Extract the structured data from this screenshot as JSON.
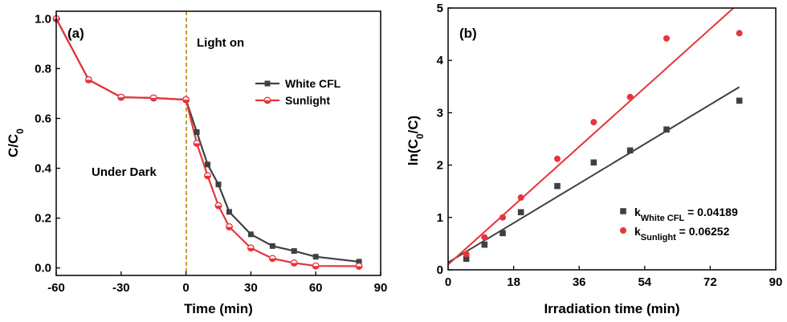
{
  "colors": {
    "white_cfl": "#404040",
    "sunlight": "#e8343c",
    "dark_line": "#b8860b"
  },
  "chart_data": [
    {
      "type": "line",
      "panel_label": "(a)",
      "xlabel": "Time (min)",
      "ylabel_main": "C/C",
      "ylabel_sub": "0",
      "xlim": [
        -60,
        90
      ],
      "ylim": [
        -0.03,
        1.03
      ],
      "xticks": [
        -60,
        -30,
        0,
        30,
        60,
        90
      ],
      "yticks": [
        0.0,
        0.2,
        0.4,
        0.6,
        0.8,
        1.0
      ],
      "xtick_labels": [
        "-60",
        "-30",
        "0",
        "30",
        "60",
        "90"
      ],
      "ytick_labels": [
        "0.0",
        "0.2",
        "0.4",
        "0.6",
        "0.8",
        "1.0"
      ],
      "annotations": {
        "light_on": "Light on",
        "under_dark": "Under Dark"
      },
      "legend_position": "top-right",
      "series": [
        {
          "name": "White CFL",
          "marker": "square",
          "x": [
            -60,
            -45,
            -30,
            -15,
            0,
            5,
            10,
            15,
            20,
            30,
            40,
            50,
            60,
            80
          ],
          "y": [
            1.0,
            0.755,
            0.685,
            0.682,
            0.675,
            0.545,
            0.415,
            0.335,
            0.225,
            0.135,
            0.088,
            0.068,
            0.045,
            0.025
          ]
        },
        {
          "name": "Sunlight",
          "marker": "half-circle",
          "x": [
            -60,
            -45,
            -30,
            -15,
            0,
            5,
            10,
            15,
            20,
            30,
            40,
            50,
            60,
            80
          ],
          "y": [
            1.0,
            0.755,
            0.685,
            0.682,
            0.675,
            0.5,
            0.37,
            0.25,
            0.165,
            0.08,
            0.038,
            0.02,
            0.008,
            0.007
          ]
        }
      ]
    },
    {
      "type": "scatter",
      "panel_label": "(b)",
      "xlabel": "Irradiation time (min)",
      "ylabel": "ln(C0/C)",
      "xlim": [
        0,
        90
      ],
      "ylim": [
        0,
        5
      ],
      "xticks": [
        0,
        18,
        36,
        54,
        72,
        90
      ],
      "yticks": [
        0,
        1,
        2,
        3,
        4,
        5
      ],
      "xtick_labels": [
        "0",
        "18",
        "36",
        "54",
        "72",
        "90"
      ],
      "ytick_labels": [
        "0",
        "1",
        "2",
        "3",
        "4",
        "5"
      ],
      "legend_position": "bottom-right",
      "series": [
        {
          "name": "White CFL",
          "marker": "square",
          "legend_k_main": "k",
          "legend_k_sub": "White CFL",
          "legend_k_value": " = 0.04189",
          "fit": {
            "slope": 0.04189,
            "intercept": 0.14
          },
          "x": [
            5,
            10,
            15,
            20,
            30,
            40,
            50,
            60,
            80
          ],
          "y": [
            0.21,
            0.48,
            0.7,
            1.1,
            1.6,
            2.05,
            2.28,
            2.68,
            3.23
          ]
        },
        {
          "name": "Sunlight",
          "marker": "circle",
          "legend_k_main": "k",
          "legend_k_sub": "Sunlight",
          "legend_k_value": " = 0.06252",
          "fit": {
            "slope": 0.06252,
            "intercept": 0.1
          },
          "x": [
            5,
            10,
            15,
            20,
            30,
            40,
            50,
            60,
            80
          ],
          "y": [
            0.3,
            0.62,
            1.0,
            1.38,
            2.12,
            2.82,
            3.3,
            4.42,
            4.52
          ]
        }
      ]
    }
  ]
}
